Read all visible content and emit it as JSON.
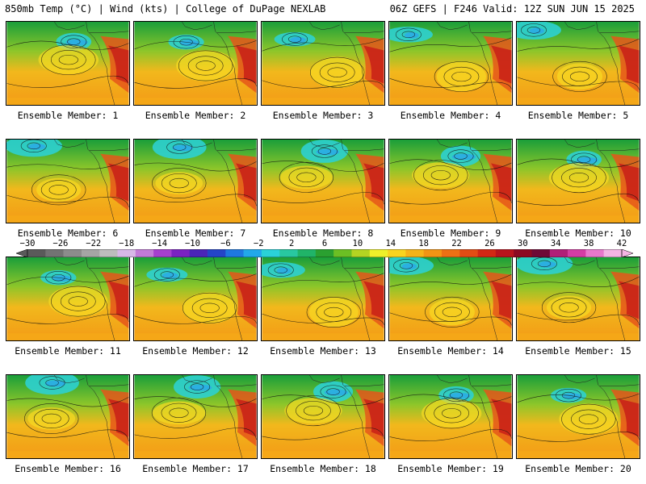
{
  "header": {
    "title_left": "850mb Temp (°C) | Wind (kts) | College of DuPage NEXLAB",
    "title_right": "06Z GEFS | F246 Valid: 12Z SUN JUN 15 2025"
  },
  "members": [
    "Ensemble Member: 1",
    "Ensemble Member: 2",
    "Ensemble Member: 3",
    "Ensemble Member: 4",
    "Ensemble Member: 5",
    "Ensemble Member: 6",
    "Ensemble Member: 7",
    "Ensemble Member: 8",
    "Ensemble Member: 9",
    "Ensemble Member: 10",
    "Ensemble Member: 11",
    "Ensemble Member: 12",
    "Ensemble Member: 13",
    "Ensemble Member: 14",
    "Ensemble Member: 15",
    "Ensemble Member: 16",
    "Ensemble Member: 17",
    "Ensemble Member: 18",
    "Ensemble Member: 19",
    "Ensemble Member: 20"
  ],
  "legend": {
    "labels": [
      "−30",
      "−26",
      "−22",
      "−18",
      "−14",
      "−10",
      "−6",
      "−2",
      "2",
      "6",
      "10",
      "14",
      "18",
      "22",
      "26",
      "30",
      "34",
      "38",
      "42"
    ],
    "colors": [
      "#5a5a5a",
      "#737373",
      "#8c8c8c",
      "#a5a5a5",
      "#bdbdbd",
      "#d7b8e8",
      "#c27ad8",
      "#a63fcf",
      "#7a22c2",
      "#4a25b8",
      "#2445c8",
      "#1e78e0",
      "#22a8ea",
      "#2ad2d8",
      "#28c8a0",
      "#20b468",
      "#2aa030",
      "#6cbf24",
      "#b4d422",
      "#eef02a",
      "#f8d41e",
      "#f6b318",
      "#f29414",
      "#ec7014",
      "#e24c14",
      "#d22814",
      "#b8141c",
      "#8c0a22",
      "#6e0a36",
      "#b01e78",
      "#d43ca4",
      "#e878cc",
      "#f4b4e4"
    ]
  }
}
